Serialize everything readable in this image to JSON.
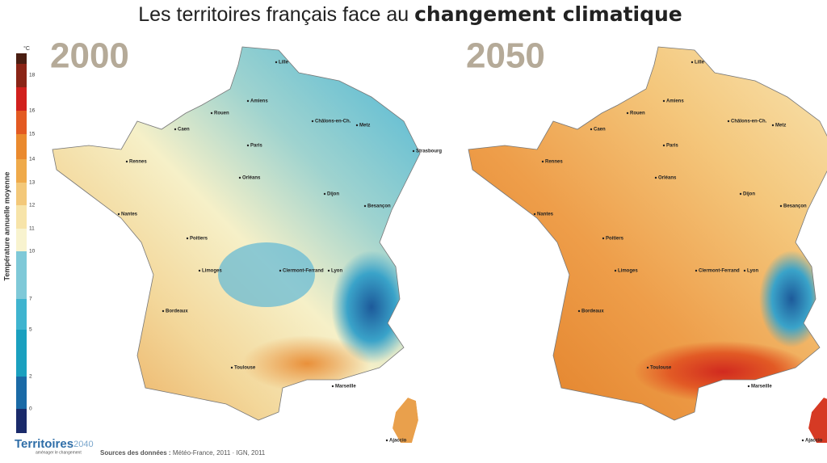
{
  "header": {
    "title_regular": "Les territoires français face au",
    "title_bold": "changement climatique"
  },
  "maps": [
    {
      "year": "2000"
    },
    {
      "year": "2050"
    }
  ],
  "legend": {
    "unit": "°C",
    "label": "Température annuelle moyenne",
    "ticks": [
      18,
      16,
      15,
      14,
      13,
      12,
      11,
      10,
      7,
      5,
      2,
      0
    ]
  },
  "cities": [
    "Lille",
    "Amiens",
    "Rouen",
    "Caen",
    "Paris",
    "Châlons-en-Ch.",
    "Metz",
    "Strasbourg",
    "Rennes",
    "Nantes",
    "Orléans",
    "Dijon",
    "Besançon",
    "Poitiers",
    "Limoges",
    "Clermont-Ferrand",
    "Lyon",
    "Bordeaux",
    "Toulouse",
    "Marseille",
    "Ajaccio"
  ],
  "footer": {
    "logo_main": "Territoires",
    "logo_year": "2040",
    "logo_tagline": "aménager le changement",
    "sources_label": "Sources des données :",
    "sources": "Météo-France, 2011 · IGN, 2011"
  }
}
